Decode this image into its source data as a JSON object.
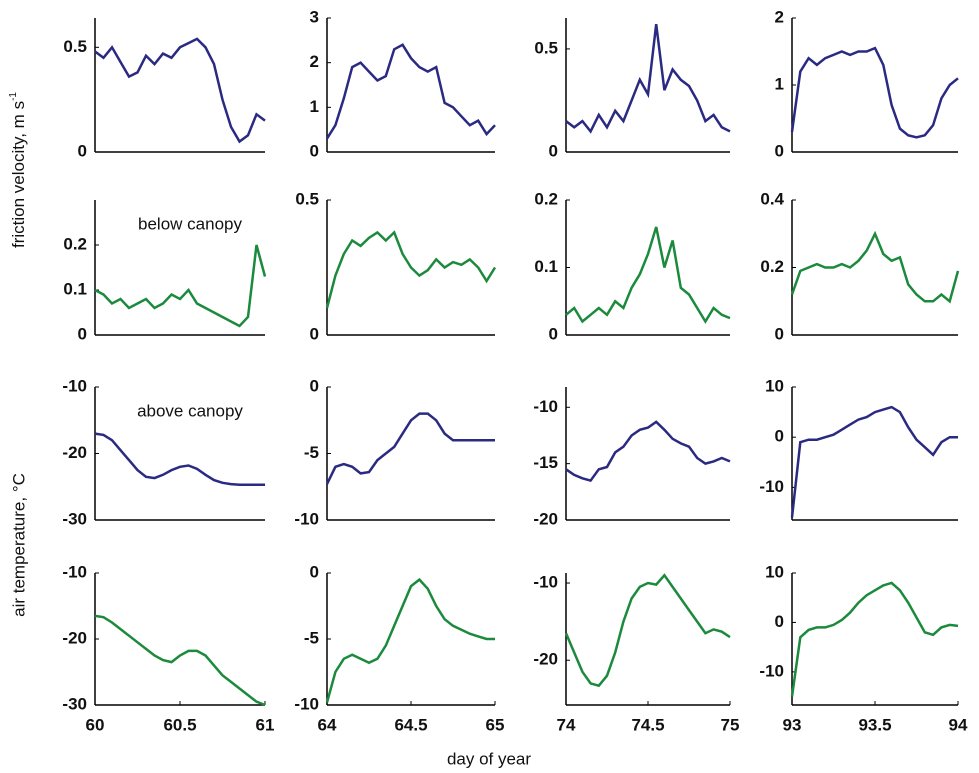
{
  "figure": {
    "ylabel_top": {
      "text": "friction velocity, m s",
      "sup": "-1"
    },
    "ylabel_bottom": "air temperature, °C",
    "xlabel": "day of year"
  },
  "chart_data": [
    {
      "type": "line",
      "x": [
        60,
        60.05,
        60.1,
        60.15,
        60.2,
        60.25,
        60.3,
        60.35,
        60.4,
        60.45,
        60.5,
        60.55,
        60.6,
        60.65,
        60.7,
        60.75,
        60.8,
        60.85,
        60.9,
        60.95,
        61
      ],
      "series": [
        {
          "color": "#2b2a82",
          "values": [
            0.48,
            0.45,
            0.5,
            0.43,
            0.36,
            0.38,
            0.46,
            0.42,
            0.47,
            0.45,
            0.5,
            0.52,
            0.54,
            0.5,
            0.42,
            0.25,
            0.12,
            0.05,
            0.08,
            0.18,
            0.15
          ]
        }
      ],
      "xlim": [
        60,
        61
      ],
      "ylim": [
        0,
        0.64
      ],
      "yticks": [
        0,
        0.5
      ]
    },
    {
      "type": "line",
      "x": [
        64,
        64.05,
        64.1,
        64.15,
        64.2,
        64.25,
        64.3,
        64.35,
        64.4,
        64.45,
        64.5,
        64.55,
        64.6,
        64.65,
        64.7,
        64.75,
        64.8,
        64.85,
        64.9,
        64.95,
        65
      ],
      "series": [
        {
          "color": "#2b2a82",
          "values": [
            0.3,
            0.6,
            1.2,
            1.9,
            2.0,
            1.8,
            1.6,
            1.7,
            2.3,
            2.4,
            2.1,
            1.9,
            1.8,
            1.9,
            1.1,
            1.0,
            0.8,
            0.6,
            0.7,
            0.4,
            0.6
          ]
        }
      ],
      "xlim": [
        64,
        65
      ],
      "ylim": [
        0,
        3
      ],
      "yticks": [
        0,
        1,
        2,
        3
      ]
    },
    {
      "type": "line",
      "x": [
        74,
        74.05,
        74.1,
        74.15,
        74.2,
        74.25,
        74.3,
        74.35,
        74.4,
        74.45,
        74.5,
        74.55,
        74.6,
        74.65,
        74.7,
        74.75,
        74.8,
        74.85,
        74.9,
        74.95,
        75
      ],
      "series": [
        {
          "color": "#2b2a82",
          "values": [
            0.15,
            0.12,
            0.15,
            0.1,
            0.18,
            0.12,
            0.2,
            0.15,
            0.25,
            0.35,
            0.28,
            0.62,
            0.3,
            0.4,
            0.35,
            0.32,
            0.25,
            0.15,
            0.18,
            0.12,
            0.1
          ]
        }
      ],
      "xlim": [
        74,
        75
      ],
      "ylim": [
        0,
        0.65
      ],
      "yticks": [
        0,
        0.5
      ]
    },
    {
      "type": "line",
      "x": [
        93,
        93.05,
        93.1,
        93.15,
        93.2,
        93.25,
        93.3,
        93.35,
        93.4,
        93.45,
        93.5,
        93.55,
        93.6,
        93.65,
        93.7,
        93.75,
        93.8,
        93.85,
        93.9,
        93.95,
        94
      ],
      "series": [
        {
          "color": "#2b2a82",
          "values": [
            0.3,
            1.2,
            1.4,
            1.3,
            1.4,
            1.45,
            1.5,
            1.45,
            1.5,
            1.5,
            1.55,
            1.3,
            0.7,
            0.35,
            0.25,
            0.22,
            0.25,
            0.4,
            0.8,
            1.0,
            1.1
          ]
        }
      ],
      "xlim": [
        93,
        94
      ],
      "ylim": [
        0,
        2
      ],
      "yticks": [
        0,
        1,
        2
      ]
    },
    {
      "type": "line",
      "annotation": "below canopy",
      "x": [
        60,
        60.05,
        60.1,
        60.15,
        60.2,
        60.25,
        60.3,
        60.35,
        60.4,
        60.45,
        60.5,
        60.55,
        60.6,
        60.65,
        60.7,
        60.75,
        60.8,
        60.85,
        60.9,
        60.95,
        61
      ],
      "series": [
        {
          "color": "#1b8a3c",
          "values": [
            0.1,
            0.09,
            0.07,
            0.08,
            0.06,
            0.07,
            0.08,
            0.06,
            0.07,
            0.09,
            0.08,
            0.1,
            0.07,
            0.06,
            0.05,
            0.04,
            0.03,
            0.02,
            0.04,
            0.2,
            0.13
          ]
        }
      ],
      "xlim": [
        60,
        61
      ],
      "ylim": [
        0,
        0.3
      ],
      "yticks": [
        0,
        0.1,
        0.2
      ]
    },
    {
      "type": "line",
      "x": [
        64,
        64.05,
        64.1,
        64.15,
        64.2,
        64.25,
        64.3,
        64.35,
        64.4,
        64.45,
        64.5,
        64.55,
        64.6,
        64.65,
        64.7,
        64.75,
        64.8,
        64.85,
        64.9,
        64.95,
        65
      ],
      "series": [
        {
          "color": "#1b8a3c",
          "values": [
            0.1,
            0.22,
            0.3,
            0.35,
            0.33,
            0.36,
            0.38,
            0.35,
            0.38,
            0.3,
            0.25,
            0.22,
            0.24,
            0.28,
            0.25,
            0.27,
            0.26,
            0.28,
            0.25,
            0.2,
            0.25
          ]
        }
      ],
      "xlim": [
        64,
        65
      ],
      "ylim": [
        0,
        0.5
      ],
      "yticks": [
        0,
        0.5
      ]
    },
    {
      "type": "line",
      "x": [
        74,
        74.05,
        74.1,
        74.15,
        74.2,
        74.25,
        74.3,
        74.35,
        74.4,
        74.45,
        74.5,
        74.55,
        74.6,
        74.65,
        74.7,
        74.75,
        74.8,
        74.85,
        74.9,
        74.95,
        75
      ],
      "series": [
        {
          "color": "#1b8a3c",
          "values": [
            0.03,
            0.04,
            0.02,
            0.03,
            0.04,
            0.03,
            0.05,
            0.04,
            0.07,
            0.09,
            0.12,
            0.16,
            0.1,
            0.14,
            0.07,
            0.06,
            0.04,
            0.02,
            0.04,
            0.03,
            0.025
          ]
        }
      ],
      "xlim": [
        74,
        75
      ],
      "ylim": [
        0,
        0.2
      ],
      "yticks": [
        0,
        0.1,
        0.2
      ]
    },
    {
      "type": "line",
      "x": [
        93,
        93.05,
        93.1,
        93.15,
        93.2,
        93.25,
        93.3,
        93.35,
        93.4,
        93.45,
        93.5,
        93.55,
        93.6,
        93.65,
        93.7,
        93.75,
        93.8,
        93.85,
        93.9,
        93.95,
        94
      ],
      "series": [
        {
          "color": "#1b8a3c",
          "values": [
            0.12,
            0.19,
            0.2,
            0.21,
            0.2,
            0.2,
            0.21,
            0.2,
            0.22,
            0.25,
            0.3,
            0.24,
            0.22,
            0.23,
            0.15,
            0.12,
            0.1,
            0.1,
            0.12,
            0.1,
            0.19
          ]
        }
      ],
      "xlim": [
        93,
        94
      ],
      "ylim": [
        0,
        0.4
      ],
      "yticks": [
        0,
        0.2,
        0.4
      ]
    },
    {
      "type": "line",
      "annotation": "above canopy",
      "x": [
        60,
        60.05,
        60.1,
        60.15,
        60.2,
        60.25,
        60.3,
        60.35,
        60.4,
        60.45,
        60.5,
        60.55,
        60.6,
        60.65,
        60.7,
        60.75,
        60.8,
        60.85,
        60.9,
        60.95,
        61
      ],
      "series": [
        {
          "color": "#2b2a82",
          "values": [
            -17,
            -17.2,
            -18,
            -19.5,
            -21,
            -22.5,
            -23.5,
            -23.7,
            -23.2,
            -22.5,
            -22,
            -21.8,
            -22.3,
            -23.2,
            -24,
            -24.4,
            -24.6,
            -24.7,
            -24.7,
            -24.7,
            -24.7
          ]
        }
      ],
      "xlim": [
        60,
        61
      ],
      "ylim": [
        -30,
        -10
      ],
      "yticks": [
        -30,
        -20,
        -10
      ]
    },
    {
      "type": "line",
      "x": [
        64,
        64.05,
        64.1,
        64.15,
        64.2,
        64.25,
        64.3,
        64.35,
        64.4,
        64.45,
        64.5,
        64.55,
        64.6,
        64.65,
        64.7,
        64.75,
        64.8,
        64.85,
        64.9,
        64.95,
        65
      ],
      "series": [
        {
          "color": "#2b2a82",
          "values": [
            -7.3,
            -6,
            -5.8,
            -6,
            -6.5,
            -6.4,
            -5.5,
            -5,
            -4.5,
            -3.5,
            -2.5,
            -2,
            -2,
            -2.5,
            -3.5,
            -4,
            -4,
            -4,
            -4,
            -4,
            -4
          ]
        }
      ],
      "xlim": [
        64,
        65
      ],
      "ylim": [
        -10,
        0
      ],
      "yticks": [
        -10,
        -5,
        0
      ]
    },
    {
      "type": "line",
      "x": [
        74,
        74.05,
        74.1,
        74.15,
        74.2,
        74.25,
        74.3,
        74.35,
        74.4,
        74.45,
        74.5,
        74.55,
        74.6,
        74.65,
        74.7,
        74.75,
        74.8,
        74.85,
        74.9,
        74.95,
        75
      ],
      "series": [
        {
          "color": "#2b2a82",
          "values": [
            -15.5,
            -16,
            -16.3,
            -16.5,
            -15.5,
            -15.3,
            -14,
            -13.5,
            -12.5,
            -12,
            -11.8,
            -11.3,
            -12,
            -12.8,
            -13.2,
            -13.5,
            -14.5,
            -15,
            -14.8,
            -14.5,
            -14.8
          ]
        }
      ],
      "xlim": [
        74,
        75
      ],
      "ylim": [
        -20,
        -8.2
      ],
      "yticks": [
        -20,
        -15,
        -10
      ]
    },
    {
      "type": "line",
      "x": [
        93,
        93.05,
        93.1,
        93.15,
        93.2,
        93.25,
        93.3,
        93.35,
        93.4,
        93.45,
        93.5,
        93.55,
        93.6,
        93.65,
        93.7,
        93.75,
        93.8,
        93.85,
        93.9,
        93.95,
        94
      ],
      "series": [
        {
          "color": "#2b2a82",
          "values": [
            -16,
            -1,
            -0.5,
            -0.5,
            0,
            0.5,
            1.5,
            2.5,
            3.5,
            4,
            5,
            5.5,
            6,
            5,
            2,
            -0.5,
            -2,
            -3.5,
            -1,
            0,
            0
          ]
        }
      ],
      "xlim": [
        93,
        94
      ],
      "ylim": [
        -16.5,
        10
      ],
      "yticks": [
        -10,
        0,
        10
      ]
    },
    {
      "type": "line",
      "x": [
        60,
        60.05,
        60.1,
        60.15,
        60.2,
        60.25,
        60.3,
        60.35,
        60.4,
        60.45,
        60.5,
        60.55,
        60.6,
        60.65,
        60.7,
        60.75,
        60.8,
        60.85,
        60.9,
        60.95,
        61
      ],
      "series": [
        {
          "color": "#1b8a3c",
          "values": [
            -16.5,
            -16.7,
            -17.5,
            -18.5,
            -19.5,
            -20.5,
            -21.5,
            -22.5,
            -23.2,
            -23.5,
            -22.5,
            -21.8,
            -21.8,
            -22.5,
            -24,
            -25.5,
            -26.5,
            -27.5,
            -28.5,
            -29.5,
            -30
          ]
        }
      ],
      "xlim": [
        60,
        61
      ],
      "ylim": [
        -30,
        -10
      ],
      "yticks": [
        -30,
        -20,
        -10
      ],
      "xticks": [
        60,
        60.5,
        61
      ]
    },
    {
      "type": "line",
      "x": [
        64,
        64.05,
        64.1,
        64.15,
        64.2,
        64.25,
        64.3,
        64.35,
        64.4,
        64.45,
        64.5,
        64.55,
        64.6,
        64.65,
        64.7,
        64.75,
        64.8,
        64.85,
        64.9,
        64.95,
        65
      ],
      "series": [
        {
          "color": "#1b8a3c",
          "values": [
            -9.8,
            -7.5,
            -6.5,
            -6.2,
            -6.5,
            -6.8,
            -6.5,
            -5.5,
            -4,
            -2.5,
            -1,
            -0.5,
            -1.2,
            -2.5,
            -3.5,
            -4,
            -4.3,
            -4.6,
            -4.8,
            -5,
            -5
          ]
        }
      ],
      "xlim": [
        64,
        65
      ],
      "ylim": [
        -10,
        0
      ],
      "yticks": [
        -10,
        -5,
        0
      ],
      "xticks": [
        64,
        64.5,
        65
      ]
    },
    {
      "type": "line",
      "x": [
        74,
        74.05,
        74.1,
        74.15,
        74.2,
        74.25,
        74.3,
        74.35,
        74.4,
        74.45,
        74.5,
        74.55,
        74.6,
        74.65,
        74.7,
        74.75,
        74.8,
        74.85,
        74.9,
        74.95,
        75
      ],
      "series": [
        {
          "color": "#1b8a3c",
          "values": [
            -16.5,
            -19,
            -21.5,
            -23,
            -23.3,
            -22,
            -19,
            -15,
            -12,
            -10.5,
            -10,
            -10.2,
            -9,
            -10.5,
            -12,
            -13.5,
            -15,
            -16.5,
            -16,
            -16.3,
            -17
          ]
        }
      ],
      "xlim": [
        74,
        75
      ],
      "ylim": [
        -25.8,
        -8.7
      ],
      "yticks": [
        -20,
        -10
      ],
      "xticks": [
        74,
        74.5,
        75
      ]
    },
    {
      "type": "line",
      "x": [
        93,
        93.05,
        93.1,
        93.15,
        93.2,
        93.25,
        93.3,
        93.35,
        93.4,
        93.45,
        93.5,
        93.55,
        93.6,
        93.65,
        93.7,
        93.75,
        93.8,
        93.85,
        93.9,
        93.95,
        94
      ],
      "series": [
        {
          "color": "#1b8a3c",
          "values": [
            -15,
            -3,
            -1.5,
            -1,
            -1,
            -0.5,
            0.5,
            2,
            4,
            5.5,
            6.5,
            7.5,
            8,
            6.5,
            4,
            1,
            -2,
            -2.5,
            -1,
            -0.5,
            -0.7
          ]
        }
      ],
      "xlim": [
        93,
        94
      ],
      "ylim": [
        -16.7,
        10
      ],
      "yticks": [
        -10,
        0,
        10
      ],
      "xticks": [
        93,
        93.5,
        94
      ]
    }
  ]
}
